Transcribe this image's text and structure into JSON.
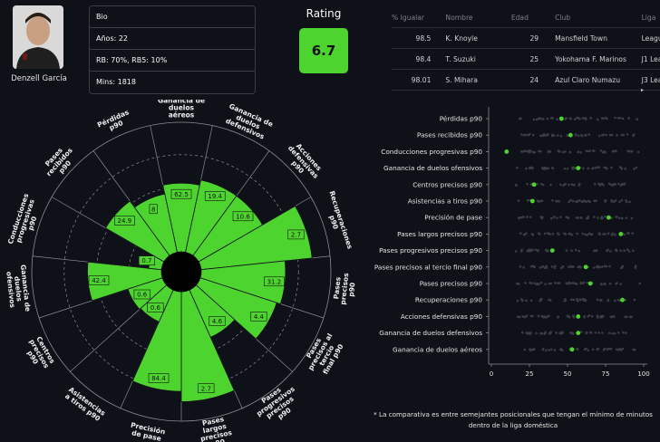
{
  "player": {
    "name": "Denzell García",
    "avatar_icon": "player-portrait-icon"
  },
  "bio": {
    "title": "Bio",
    "rows": [
      "Años: 22",
      "RB: 70%, RB5: 10%",
      "Mins: 1818"
    ]
  },
  "rating": {
    "label": "Rating",
    "value": "6.7",
    "color": "#4ed42f"
  },
  "similar_table": {
    "headers": [
      "% Igualar",
      "Nombre",
      "Edad",
      "Club",
      "Liga"
    ],
    "rows": [
      [
        "98.5",
        "K. Knoyle",
        "29",
        "Mansfield Town",
        "League Two"
      ],
      [
        "98.4",
        "T. Suzuki",
        "25",
        "Yokohama F. Marinos",
        "J1 League"
      ],
      [
        "98.01",
        "S. Mihara",
        "24",
        "Azul Claro Numazu",
        "J3 League"
      ]
    ],
    "scroll_icon": "scroll-right-icon",
    "scroll_glyph": "▸"
  },
  "chart_data": [
    {
      "type": "polar-bar",
      "title": "",
      "color": "#4ed42f",
      "rmax": 100,
      "categories": [
        "Ganancia de duelos aéreos",
        "Ganancia de duelos defensivos",
        "Acciones defensivas p90",
        "Recuperaciones p90",
        "Pases precisos p90",
        "Pases precisos al tercio final p90",
        "Pases progresivos precisos p90",
        "Pases largos precisos p90",
        "Precisión de pase",
        "Asistencias a tiros p90",
        "Centros precisos p90",
        "Ganancia de duelos ofensivos",
        "Conducciones progresivas p90",
        "Pases recibidos p90",
        "Pérdidas p90"
      ],
      "values": [
        62.5,
        19.4,
        10.6,
        2.7,
        31.2,
        4.4,
        4.6,
        2.7,
        84.4,
        0.6,
        0.6,
        42.4,
        0.7,
        24.9,
        8.0
      ],
      "percentiles": [
        53,
        57,
        57,
        86,
        65,
        62,
        40,
        85,
        77,
        27,
        28,
        57,
        10,
        52,
        46
      ]
    },
    {
      "type": "scatter",
      "title": "",
      "xlim": [
        0,
        100
      ],
      "xticks": [
        "0",
        "25",
        "50",
        "75",
        "100"
      ],
      "categories": [
        "Pérdidas p90",
        "Pases recibidos p90",
        "Conducciones progresivas p90",
        "Ganancia de duelos ofensivos",
        "Centros precisos p90",
        "Asistencias a tiros p90",
        "Precisión de pase",
        "Pases largos precisos p90",
        "Pases progresivos precisos p90",
        "Pases precisos al tercio final p90",
        "Pases precisos p90",
        "Recuperaciones p90",
        "Acciones defensivas p90",
        "Ganancia de duelos defensivos",
        "Ganancia de duelos aéreos"
      ],
      "player_values": [
        46,
        52,
        10,
        57,
        28,
        27,
        77,
        85,
        40,
        62,
        65,
        86,
        57,
        57,
        53
      ],
      "highlight_color": "#4ed42f",
      "background_dot_color": "#3a3d44"
    }
  ],
  "footnote": "* La comparativa es entre semejantes posicionales que tengan el mínimo de minutos dentro de la liga doméstica"
}
